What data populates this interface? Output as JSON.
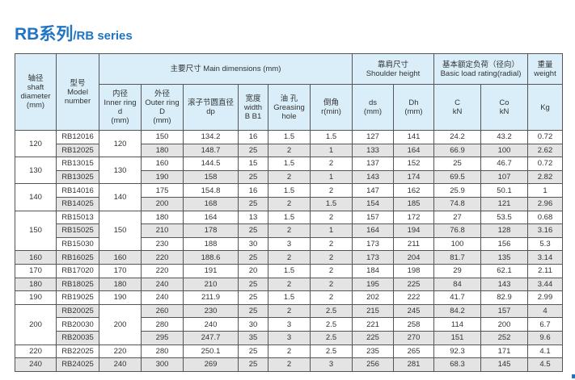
{
  "title": {
    "main": "RB系列",
    "sub": "/RB series"
  },
  "colors": {
    "title": "#1f74c4",
    "header_bg": "#d9eef8",
    "alt_row": "#e4e4e4"
  },
  "headers": {
    "shaft": [
      "轴径",
      "shaft",
      "diameter",
      "(mm)"
    ],
    "model": [
      "型号",
      "Model",
      "number"
    ],
    "main_dimensions": "主要尺寸 Main dimensions (mm)",
    "shoulder": [
      "靠肩尺寸",
      "Shoulder height"
    ],
    "load": [
      "基本额定负荷（径向）",
      "Basic load rating(radial)"
    ],
    "weight": [
      "重量",
      "weight"
    ],
    "inner": [
      "内径",
      "Inner ring",
      "d",
      "(mm)"
    ],
    "outer": [
      "外径",
      "Outer ring",
      "D",
      "(mm)"
    ],
    "dp": [
      "滚子节圆直径",
      "dp"
    ],
    "width": [
      "宽度",
      "width",
      "B B1"
    ],
    "greasing": [
      "油 孔",
      "Greasing",
      "hole"
    ],
    "chamfer": [
      "倒角",
      "r(min)"
    ],
    "ds": [
      "ds",
      "(mm)"
    ],
    "dh": [
      "Dh",
      "(mm)"
    ],
    "c": [
      "C",
      "kN"
    ],
    "co": [
      "Co",
      "kN"
    ],
    "kg": "Kg"
  },
  "groups": [
    {
      "shaft": "120",
      "inner": "120",
      "rows": [
        [
          "RB12016",
          "150",
          "134.2",
          "16",
          "1.5",
          "1.5",
          "127",
          "141",
          "24.2",
          "43.2",
          "0.72"
        ],
        [
          "RB12025",
          "180",
          "148.7",
          "25",
          "2",
          "1",
          "133",
          "164",
          "66.9",
          "100",
          "2.62"
        ]
      ]
    },
    {
      "shaft": "130",
      "inner": "130",
      "rows": [
        [
          "RB13015",
          "160",
          "144.5",
          "15",
          "1.5",
          "2",
          "137",
          "152",
          "25",
          "46.7",
          "0.72"
        ],
        [
          "RB13025",
          "190",
          "158",
          "25",
          "2",
          "1",
          "143",
          "174",
          "69.5",
          "107",
          "2.82"
        ]
      ]
    },
    {
      "shaft": "140",
      "inner": "140",
      "rows": [
        [
          "RB14016",
          "175",
          "154.8",
          "16",
          "1.5",
          "2",
          "147",
          "162",
          "25.9",
          "50.1",
          "1"
        ],
        [
          "RB14025",
          "200",
          "168",
          "25",
          "2",
          "1.5",
          "154",
          "185",
          "74.8",
          "121",
          "2.96"
        ]
      ]
    },
    {
      "shaft": "150",
      "inner": "150",
      "rows": [
        [
          "RB15013",
          "180",
          "164",
          "13",
          "1.5",
          "2",
          "157",
          "172",
          "27",
          "53.5",
          "0.68"
        ],
        [
          "RB15025",
          "210",
          "178",
          "25",
          "2",
          "1",
          "164",
          "194",
          "76.8",
          "128",
          "3.16"
        ],
        [
          "RB15030",
          "230",
          "188",
          "30",
          "3",
          "2",
          "173",
          "211",
          "100",
          "156",
          "5.3"
        ]
      ]
    },
    {
      "shaft": "160",
      "inner": "160",
      "rows": [
        [
          "RB16025",
          "220",
          "188.6",
          "25",
          "2",
          "2",
          "173",
          "204",
          "81.7",
          "135",
          "3.14"
        ]
      ]
    },
    {
      "shaft": "170",
      "inner": "170",
      "rows": [
        [
          "RB17020",
          "220",
          "191",
          "20",
          "1.5",
          "2",
          "184",
          "198",
          "29",
          "62.1",
          "2.11"
        ]
      ]
    },
    {
      "shaft": "180",
      "inner": "180",
      "rows": [
        [
          "RB18025",
          "240",
          "210",
          "25",
          "2",
          "2",
          "195",
          "225",
          "84",
          "143",
          "3.44"
        ]
      ]
    },
    {
      "shaft": "190",
      "inner": "190",
      "rows": [
        [
          "RB19025",
          "240",
          "211.9",
          "25",
          "1.5",
          "2",
          "202",
          "222",
          "41.7",
          "82.9",
          "2.99"
        ]
      ]
    },
    {
      "shaft": "200",
      "inner": "200",
      "rows": [
        [
          "RB20025",
          "260",
          "230",
          "25",
          "2",
          "2.5",
          "215",
          "245",
          "84.2",
          "157",
          "4"
        ],
        [
          "RB20030",
          "280",
          "240",
          "30",
          "3",
          "2.5",
          "221",
          "258",
          "114",
          "200",
          "6.7"
        ],
        [
          "RB20035",
          "295",
          "247.7",
          "35",
          "3",
          "2.5",
          "225",
          "270",
          "151",
          "252",
          "9.6"
        ]
      ]
    },
    {
      "shaft": "220",
      "inner": "220",
      "rows": [
        [
          "RB22025",
          "280",
          "250.1",
          "25",
          "2",
          "2.5",
          "235",
          "265",
          "92.3",
          "171",
          "4.1"
        ]
      ]
    },
    {
      "shaft": "240",
      "inner": "240",
      "rows": [
        [
          "RB24025",
          "300",
          "269",
          "25",
          "2",
          "3",
          "256",
          "281",
          "68.3",
          "145",
          "4.5"
        ]
      ]
    }
  ]
}
